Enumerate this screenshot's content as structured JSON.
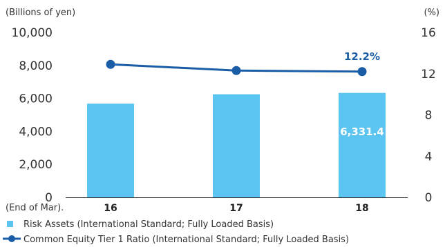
{
  "chart_data": {
    "type": "bar",
    "categories": [
      "16",
      "17",
      "18"
    ],
    "x_prefix": "(End of Mar).",
    "left_axis": {
      "unit_label": "(Billions of yen)",
      "ylim": [
        0,
        10000
      ],
      "ticks": [
        "0",
        "2,000",
        "4,000",
        "6,000",
        "8,000",
        "10,000"
      ],
      "tick_values": [
        0,
        2000,
        4000,
        6000,
        8000,
        10000
      ]
    },
    "right_axis": {
      "unit_label": "(%)",
      "ylim": [
        0,
        16
      ],
      "ticks": [
        "0",
        "4",
        "8",
        "12",
        "16"
      ],
      "tick_values": [
        0,
        4,
        8,
        12,
        16
      ]
    },
    "series": [
      {
        "name": "Risk Assets (International Standard; Fully Loaded Basis)",
        "type": "bar",
        "axis": "left",
        "color": "#5bc4f1",
        "values": [
          5680,
          6250,
          6331.4
        ],
        "label_text": "6,331.4"
      },
      {
        "name": "Common Equity Tier 1 Ratio (International Standard; Fully Loaded Basis)",
        "type": "line",
        "axis": "right",
        "color": "#1a5da6",
        "values": [
          12.9,
          12.3,
          12.2
        ],
        "label_text": "12.2%"
      }
    ],
    "legend_placement": "bottom-left",
    "grid": false
  }
}
